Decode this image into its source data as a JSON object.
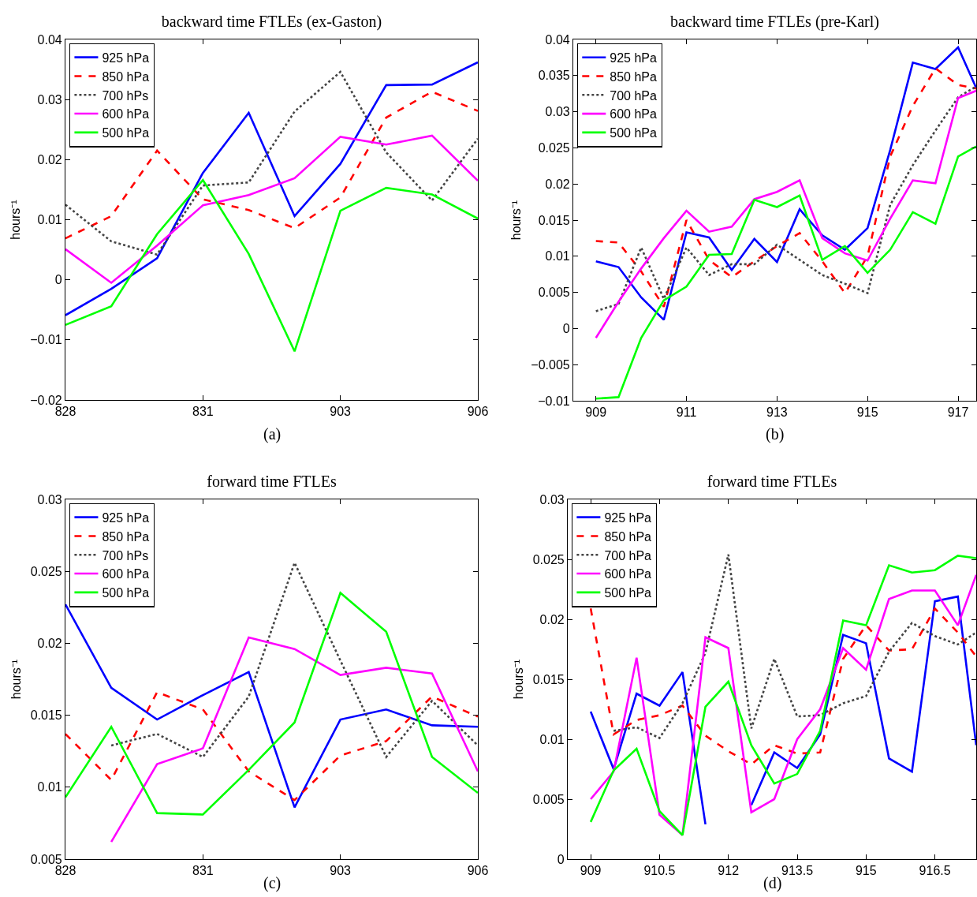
{
  "chart_data": [
    {
      "type": "line",
      "title": "backward time FTLEs (ex-Gaston)",
      "ylabel": "hours⁻¹",
      "annotations": [
        "(a)"
      ],
      "legend": "top left",
      "categories": [
        "828",
        null,
        null,
        "831",
        null,
        null,
        "903",
        null,
        null,
        "906"
      ],
      "ylim": [
        -0.02,
        0.04
      ],
      "yticks": [
        -0.02,
        -0.01,
        0,
        0.01,
        0.02,
        0.03,
        0.04
      ],
      "series": [
        {
          "name": "925 hPa",
          "color": "#0000ff",
          "line_style": "solid",
          "values": [
            -0.0059,
            -0.0015,
            0.0036,
            0.0178,
            0.0278,
            0.0106,
            0.0193,
            0.0324,
            0.0325,
            0.0362
          ]
        },
        {
          "name": "850 hPa",
          "color": "#ff0000",
          "line_style": "dashed",
          "values": [
            0.0069,
            0.0106,
            0.0215,
            0.0134,
            0.0116,
            0.0086,
            0.0137,
            0.027,
            0.0313,
            0.0281
          ]
        },
        {
          "name": "700 hPs",
          "color": "#444444",
          "line_style": "dotted",
          "values": [
            0.0125,
            0.0064,
            0.0042,
            0.0157,
            0.0162,
            0.028,
            0.0346,
            0.0212,
            0.0132,
            0.0235
          ]
        },
        {
          "name": "600 hPa",
          "color": "#ff00ff",
          "line_style": "solid",
          "values": [
            0.0051,
            -0.0005,
            0.0057,
            0.0124,
            0.0141,
            0.0169,
            0.0238,
            0.0225,
            0.024,
            0.0165
          ]
        },
        {
          "name": "500 hPa",
          "color": "#00ff00",
          "line_style": "solid",
          "values": [
            -0.0075,
            -0.0044,
            0.0076,
            0.0166,
            0.0043,
            -0.0119,
            0.0115,
            0.0153,
            0.0142,
            0.0102
          ]
        }
      ]
    },
    {
      "type": "line",
      "title": "backward time FTLEs (pre-Karl)",
      "ylabel": "hours⁻¹",
      "annotations": [
        "(b)"
      ],
      "legend": "top left",
      "x": [
        909,
        909.5,
        910,
        910.5,
        911,
        911.5,
        912,
        912.5,
        913,
        913.5,
        914,
        914.5,
        915,
        915.5,
        916,
        916.5,
        917,
        917.4
      ],
      "xlim": [
        908.5,
        917.4
      ],
      "xticks": [
        909,
        911,
        913,
        915,
        917
      ],
      "ylim": [
        -0.01,
        0.04
      ],
      "yticks": [
        -0.01,
        -0.005,
        0,
        0.005,
        0.01,
        0.015,
        0.02,
        0.025,
        0.03,
        0.035,
        0.04
      ],
      "series": [
        {
          "name": "925 hPa",
          "color": "#0000ff",
          "line_style": "solid",
          "values": [
            0.0093,
            0.0085,
            0.0043,
            0.0012,
            0.0133,
            0.0126,
            0.0081,
            0.0124,
            0.0092,
            0.0165,
            0.0129,
            0.0109,
            0.0139,
            0.0247,
            0.0368,
            0.0359,
            0.0389,
            0.0333
          ]
        },
        {
          "name": "850 hPa",
          "color": "#ff0000",
          "line_style": "dashed",
          "values": [
            0.0121,
            0.0119,
            0.0079,
            0.003,
            0.015,
            0.0095,
            0.0071,
            0.0093,
            0.0114,
            0.0132,
            0.0093,
            0.0049,
            0.01,
            0.0238,
            0.0308,
            0.036,
            0.0337,
            0.0332
          ]
        },
        {
          "name": "700 hPa",
          "color": "#444444",
          "line_style": "dotted",
          "values": [
            0.0024,
            0.0034,
            0.0112,
            0.0041,
            0.0112,
            0.0074,
            0.0089,
            0.0089,
            0.0116,
            0.0095,
            0.0074,
            0.0062,
            0.0049,
            0.0171,
            0.0226,
            0.0274,
            0.032,
            0.0335
          ]
        },
        {
          "name": "600 hPa",
          "color": "#ff00ff",
          "line_style": "solid",
          "values": [
            -0.0013,
            0.0037,
            0.0083,
            0.0125,
            0.0163,
            0.0134,
            0.0141,
            0.0179,
            0.0189,
            0.0205,
            0.0125,
            0.0104,
            0.0094,
            0.0152,
            0.0205,
            0.0201,
            0.0319,
            0.0329
          ]
        },
        {
          "name": "500 hPa",
          "color": "#00ff00",
          "line_style": "solid",
          "values": [
            -0.0097,
            -0.0095,
            -0.0013,
            0.0039,
            0.0058,
            0.0102,
            0.0103,
            0.0178,
            0.0168,
            0.0184,
            0.0095,
            0.0114,
            0.0077,
            0.0109,
            0.0161,
            0.0145,
            0.0238,
            0.0252
          ]
        }
      ]
    },
    {
      "type": "line",
      "title": "forward time FTLEs",
      "ylabel": "hours⁻¹",
      "annotations": [
        "(c)"
      ],
      "legend": "top left",
      "categories": [
        "828",
        null,
        null,
        "831",
        null,
        null,
        "903",
        null,
        null,
        "906"
      ],
      "ylim": [
        0.005,
        0.03
      ],
      "yticks": [
        0.005,
        0.01,
        0.015,
        0.02,
        0.025,
        0.03
      ],
      "series": [
        {
          "name": "925 hPa",
          "color": "#0000ff",
          "line_style": "solid",
          "values": [
            0.0227,
            0.0169,
            0.0147,
            0.0164,
            0.018,
            0.0086,
            0.0147,
            0.0154,
            0.0143,
            0.0142
          ]
        },
        {
          "name": "850 hPa",
          "color": "#ff0000",
          "line_style": "dashed",
          "values": [
            0.0137,
            0.0105,
            0.0166,
            0.0154,
            0.0111,
            0.0091,
            0.0122,
            0.0132,
            0.0163,
            0.0149
          ]
        },
        {
          "name": "700 hPs",
          "color": "#444444",
          "line_style": "dotted",
          "values": [
            null,
            0.0129,
            0.0137,
            0.0121,
            0.0163,
            0.0256,
            0.0188,
            0.0121,
            0.016,
            0.0129
          ]
        },
        {
          "name": "600 hPa",
          "color": "#ff00ff",
          "line_style": "solid",
          "values": [
            null,
            0.0062,
            0.0116,
            0.0127,
            0.0204,
            0.0196,
            0.0178,
            0.0183,
            0.0179,
            0.0111
          ]
        },
        {
          "name": "500 hPa",
          "color": "#00ff00",
          "line_style": "solid",
          "values": [
            0.0093,
            0.0142,
            0.0082,
            0.0081,
            0.0112,
            0.0145,
            0.0235,
            0.0208,
            0.0121,
            0.0096
          ]
        }
      ]
    },
    {
      "type": "line",
      "title": "forward time FTLEs",
      "ylabel": "hours⁻¹",
      "annotations": [
        "(d)"
      ],
      "legend": "top left",
      "x": [
        909,
        909.5,
        910,
        910.5,
        911,
        911.5,
        912,
        912.5,
        913,
        913.5,
        914,
        914.5,
        915,
        915.5,
        916,
        916.5,
        917,
        917.4
      ],
      "xlim": [
        908.5,
        917.4
      ],
      "xticks": [
        909,
        910.5,
        912,
        913.5,
        915,
        916.5
      ],
      "ylim": [
        0,
        0.03
      ],
      "yticks": [
        0,
        0.005,
        0.01,
        0.015,
        0.02,
        0.025,
        0.03
      ],
      "series": [
        {
          "name": "925 hPa",
          "color": "#0000ff",
          "line_style": "solid",
          "values": [
            0.0123,
            0.0075,
            0.0138,
            0.0128,
            0.0156,
            0.0029,
            null,
            0.0045,
            0.0089,
            0.0076,
            0.0104,
            0.0187,
            0.018,
            0.0084,
            0.0073,
            0.0215,
            0.0219,
            0.0095
          ]
        },
        {
          "name": "850 hPa",
          "color": "#ff0000",
          "line_style": "dashed",
          "values": [
            0.0209,
            0.0104,
            0.0116,
            0.012,
            0.0128,
            0.0103,
            0.009,
            0.0079,
            0.0095,
            0.0088,
            0.0089,
            0.0167,
            0.0195,
            0.0174,
            0.0175,
            0.0209,
            0.0189,
            0.0169
          ]
        },
        {
          "name": "700 hPa",
          "color": "#444444",
          "line_style": "dotted",
          "values": [
            null,
            0.0107,
            0.011,
            0.0101,
            0.013,
            0.0172,
            0.0254,
            0.0109,
            0.0167,
            0.0119,
            0.012,
            0.013,
            0.0136,
            0.0173,
            0.0197,
            0.0186,
            0.0179,
            0.0189
          ]
        },
        {
          "name": "600 hPa",
          "color": "#ff00ff",
          "line_style": "solid",
          "values": [
            0.005,
            0.0073,
            0.0168,
            0.0037,
            0.002,
            0.0185,
            0.0176,
            0.0039,
            0.005,
            0.01,
            0.0125,
            0.0176,
            0.0158,
            0.0217,
            0.0224,
            0.0224,
            0.0195,
            0.0237
          ]
        },
        {
          "name": "500 hPa",
          "color": "#00ff00",
          "line_style": "solid",
          "values": [
            0.0031,
            0.0074,
            0.0092,
            0.004,
            0.002,
            0.0127,
            0.0148,
            0.0095,
            0.0063,
            0.0071,
            0.0107,
            0.0199,
            0.0195,
            0.0245,
            0.0239,
            0.0241,
            0.0253,
            0.0251
          ]
        }
      ]
    }
  ]
}
